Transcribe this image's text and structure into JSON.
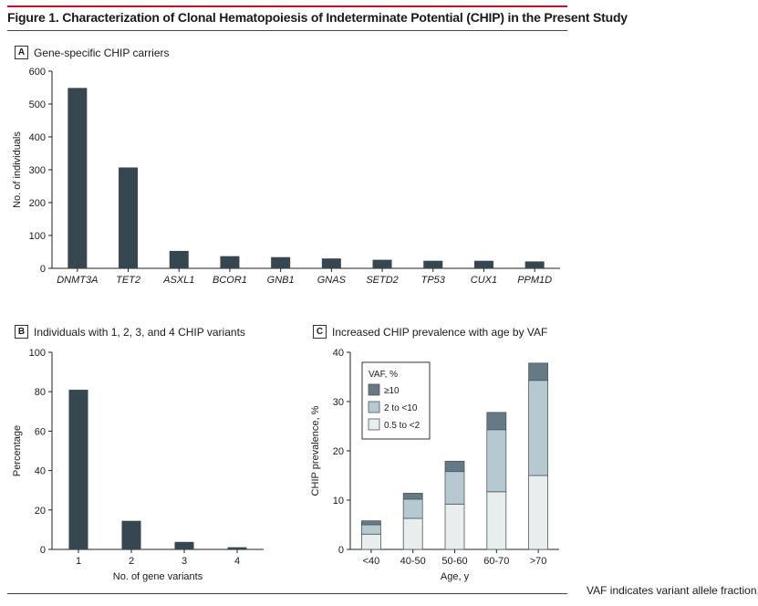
{
  "figure": {
    "title": "Figure 1. Characterization of Clonal Hematopoiesis of Indeterminate Potential (CHIP) in the Present Study",
    "note": "VAF indicates variant allele fraction."
  },
  "colors": {
    "dark": "#36474f",
    "mid": "#b7c9d0",
    "light": "#e9eded",
    "top": "#657a84",
    "accent": "#c8102e"
  },
  "chart_data": [
    {
      "id": "A",
      "type": "bar",
      "title": "Gene-specific CHIP carriers",
      "xlabel": "",
      "ylabel": "No. of individuals",
      "ylim": [
        0,
        600
      ],
      "yticks": [
        0,
        100,
        200,
        300,
        400,
        500,
        600
      ],
      "categories": [
        "DNMT3A",
        "TET2",
        "ASXL1",
        "BCOR1",
        "GNB1",
        "GNAS",
        "SETD2",
        "TP53",
        "CUX1",
        "PPM1D"
      ],
      "values": [
        549,
        307,
        53,
        37,
        34,
        30,
        26,
        23,
        23,
        21
      ]
    },
    {
      "id": "B",
      "type": "bar",
      "title": "Individuals with 1, 2, 3, and 4 CHIP variants",
      "xlabel": "No. of gene variants",
      "ylabel": "Percentage",
      "ylim": [
        0,
        100
      ],
      "yticks": [
        0,
        20,
        40,
        60,
        80,
        100
      ],
      "categories": [
        "1",
        "2",
        "3",
        "4"
      ],
      "values": [
        81,
        14.5,
        3.8,
        1.1
      ]
    },
    {
      "id": "C",
      "type": "bar",
      "stacked": true,
      "title": "Increased CHIP prevalence with age by VAF",
      "xlabel": "Age, y",
      "ylabel": "CHIP prevalence, %",
      "ylim": [
        0,
        40
      ],
      "yticks": [
        0,
        10,
        20,
        30,
        40
      ],
      "legend_title": "VAF, %",
      "legend_position": "top-left",
      "categories": [
        "<40",
        "40-50",
        "50-60",
        "60-70",
        ">70"
      ],
      "series": [
        {
          "name": "0.5 to <2",
          "values": [
            3.1,
            6.3,
            9.2,
            11.7,
            15.0
          ]
        },
        {
          "name": "2 to <10",
          "values": [
            1.9,
            3.9,
            6.6,
            12.6,
            19.3
          ]
        },
        {
          "name": "≥10",
          "values": [
            0.8,
            1.2,
            2.1,
            3.5,
            3.5
          ]
        }
      ]
    }
  ]
}
